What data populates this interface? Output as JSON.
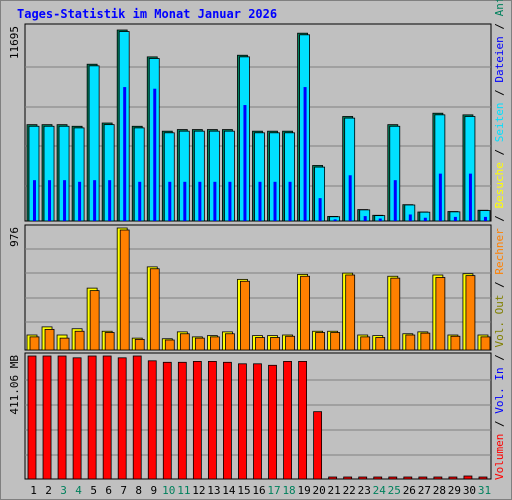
{
  "title": "Tages-Statistik im Monat Januar 2026",
  "colors": {
    "background": "#c0c0c0",
    "grid": "#808080",
    "anfragen": "#00805c",
    "dateien": "#0000ff",
    "seiten": "#00e0ff",
    "besuche": "#ffff00",
    "rechner": "#ff8000",
    "vol_out": "#808000",
    "vol_in": "#0000ff",
    "volumen": "#ff0000",
    "weekend": "#00805c",
    "weekday": "#000000"
  },
  "chart_data": [
    {
      "type": "bar",
      "panel": "top",
      "max_label": "11695",
      "ylim": [
        0,
        11695
      ],
      "categories": [
        "1",
        "2",
        "3",
        "4",
        "5",
        "6",
        "7",
        "8",
        "9",
        "10",
        "11",
        "12",
        "13",
        "14",
        "15",
        "16",
        "17",
        "18",
        "19",
        "20",
        "21",
        "22",
        "23",
        "24",
        "25",
        "26",
        "27",
        "28",
        "29",
        "30",
        "31"
      ],
      "weekend_days": [
        3,
        4,
        10,
        11,
        17,
        18,
        24,
        25,
        31
      ],
      "series": [
        {
          "name": "Anfragen",
          "values": [
            5900,
            5900,
            5900,
            5800,
            9600,
            6000,
            11695,
            5800,
            10050,
            5500,
            5600,
            5600,
            5600,
            5600,
            10150,
            5500,
            5500,
            5500,
            11500,
            3400,
            280,
            6400,
            700,
            350,
            5900,
            1000,
            550,
            6600,
            580,
            6500,
            660
          ]
        },
        {
          "name": "Dateien",
          "values": [
            2500,
            2500,
            2500,
            2400,
            2500,
            2500,
            8200,
            2400,
            8100,
            2400,
            2400,
            2400,
            2400,
            2400,
            7100,
            2400,
            2400,
            2400,
            8200,
            1400,
            100,
            2800,
            300,
            150,
            2500,
            400,
            200,
            2900,
            250,
            2900,
            250
          ]
        },
        {
          "name": "Seiten",
          "values": [
            5800,
            5800,
            5800,
            5700,
            9500,
            5900,
            11600,
            5700,
            9950,
            5400,
            5500,
            5500,
            5500,
            5500,
            10050,
            5400,
            5400,
            5400,
            11400,
            3300,
            260,
            6300,
            680,
            330,
            5800,
            980,
            540,
            6500,
            560,
            6400,
            640
          ]
        }
      ],
      "legend": [
        "Anfragen",
        "Dateien",
        "Seiten"
      ]
    },
    {
      "type": "bar",
      "panel": "middle",
      "max_label": "976",
      "ylim": [
        0,
        976
      ],
      "series": [
        {
          "name": "Besuche",
          "values": [
            120,
            185,
            120,
            170,
            495,
            150,
            976,
            95,
            665,
            90,
            145,
            105,
            115,
            145,
            565,
            115,
            115,
            120,
            605,
            150,
            150,
            615,
            120,
            115,
            590,
            130,
            145,
            600,
            120,
            610,
            120
          ]
        },
        {
          "name": "Rechner",
          "values": [
            105,
            165,
            95,
            150,
            475,
            140,
            960,
            85,
            650,
            80,
            130,
            95,
            105,
            130,
            550,
            100,
            100,
            110,
            590,
            140,
            140,
            600,
            105,
            100,
            575,
            120,
            135,
            580,
            110,
            595,
            105
          ]
        }
      ],
      "legend": [
        "Besuche",
        "Rechner"
      ]
    },
    {
      "type": "bar",
      "panel": "bottom",
      "max_label": "411.06 MB",
      "ylim": [
        0,
        411.06
      ],
      "series": [
        {
          "name": "Volumen",
          "values": [
            411.06,
            411.06,
            411.06,
            405,
            411.06,
            411.06,
            405,
            411.06,
            395,
            390,
            390,
            393,
            393,
            390,
            385,
            385,
            380,
            393,
            393,
            225,
            5,
            5,
            5,
            5,
            5,
            5,
            5,
            5,
            5,
            10,
            5
          ]
        }
      ],
      "legend": [
        "Vol. Out",
        "Vol. In",
        "Volumen"
      ]
    }
  ]
}
